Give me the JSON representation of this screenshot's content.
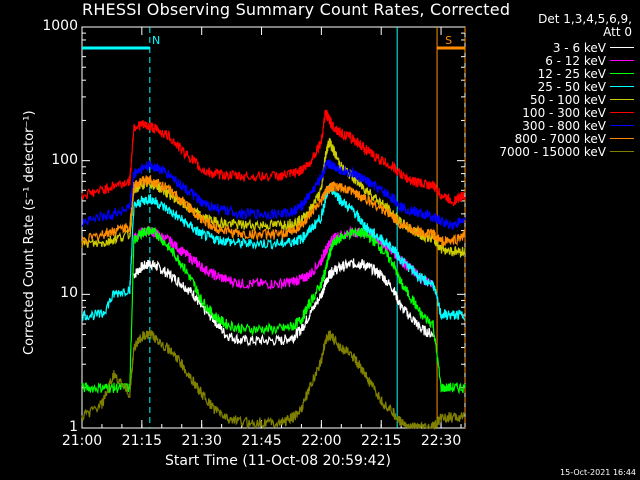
{
  "chart_data": {
    "type": "line",
    "title": "RHESSI Observing Summary Count Rates, Corrected",
    "xlabel": "Start Time (11-Oct-08 20:59:42)",
    "ylabel": "Corrected Count Rate (s⁻¹ detector⁻¹)",
    "yscale": "log",
    "ylim": [
      1,
      1000
    ],
    "xlim_minutes": [
      0,
      96
    ],
    "x_tick_labels": [
      "21:00",
      "21:15",
      "21:30",
      "21:45",
      "22:00",
      "22:15",
      "22:30"
    ],
    "x_tick_minutes": [
      0,
      15,
      30,
      45,
      60,
      75,
      90
    ],
    "y_tick_labels": [
      "1",
      "10",
      "100",
      "1000"
    ],
    "y_tick_values": [
      1,
      10,
      100,
      1000
    ],
    "legend_header": [
      "Det 1,3,4,5,6,9,",
      "Att 0"
    ],
    "timestamp": "15-Oct-2021 16:44",
    "markers": [
      {
        "label": "N",
        "start_min": 0,
        "end_min": 17,
        "dashed_at": 17,
        "color": "#00ffff"
      },
      {
        "label": "S",
        "start_min": 89,
        "end_min": 96,
        "dashed_at": 96,
        "color": "#ff8c00"
      }
    ],
    "x_minutes": [
      0,
      5,
      8,
      12,
      13,
      15,
      17,
      19,
      22,
      25,
      28,
      30,
      33,
      36,
      40,
      45,
      50,
      53,
      55,
      57,
      60,
      61,
      62,
      63,
      65,
      68,
      70,
      72,
      75,
      78,
      80,
      83,
      85,
      88,
      90,
      93,
      96
    ],
    "series": [
      {
        "name": "3 - 6 keV",
        "color": "#ffffff",
        "values": [
          null,
          null,
          null,
          null,
          14,
          16,
          17,
          16,
          14,
          12,
          10,
          8,
          6.5,
          5,
          4.5,
          4.5,
          4.5,
          4.8,
          5.5,
          7,
          10,
          12,
          14,
          15,
          16,
          17,
          17,
          16,
          14,
          11,
          8,
          6.5,
          5.5,
          5,
          null,
          null,
          null
        ]
      },
      {
        "name": "6 - 12 keV",
        "color": "#ff00ff",
        "values": [
          null,
          null,
          null,
          null,
          27,
          29,
          30,
          28,
          25,
          21,
          18,
          16,
          14,
          13,
          12,
          12,
          12,
          12.5,
          13,
          14,
          18,
          21,
          24,
          26,
          28,
          29,
          29,
          28,
          25,
          21,
          18,
          15,
          13,
          12,
          null,
          null,
          null
        ]
      },
      {
        "name": "12 - 25 keV",
        "color": "#00ff00",
        "values": [
          2,
          2,
          2,
          2,
          25,
          29,
          30,
          28,
          22,
          17,
          12,
          9,
          7,
          6,
          5.5,
          5.5,
          5.5,
          5.8,
          6.5,
          8.5,
          12,
          15,
          20,
          24,
          27,
          29,
          29,
          27,
          22,
          17,
          12,
          9,
          7,
          6,
          2,
          2,
          2
        ]
      },
      {
        "name": "25 - 50 keV",
        "color": "#00ffff",
        "values": [
          7,
          7,
          10,
          11,
          45,
          50,
          52,
          48,
          42,
          36,
          31,
          28,
          26,
          25,
          24,
          24,
          24,
          25,
          26,
          30,
          38,
          52,
          62,
          60,
          50,
          42,
          35,
          30,
          26,
          22,
          18,
          15,
          13,
          12,
          7,
          7,
          7
        ]
      },
      {
        "name": "50 - 100 keV",
        "color": "#cccc00",
        "values": [
          24,
          24,
          26,
          28,
          60,
          66,
          68,
          64,
          56,
          48,
          42,
          38,
          35,
          34,
          33,
          33,
          33,
          34,
          36,
          42,
          60,
          110,
          140,
          120,
          90,
          75,
          65,
          58,
          48,
          40,
          34,
          30,
          28,
          26,
          22,
          21,
          21
        ]
      },
      {
        "name": "100 - 300 keV",
        "color": "#ff0000",
        "values": [
          55,
          60,
          65,
          70,
          180,
          185,
          180,
          170,
          150,
          120,
          100,
          85,
          80,
          78,
          76,
          76,
          77,
          80,
          85,
          95,
          140,
          230,
          200,
          180,
          160,
          145,
          130,
          115,
          100,
          90,
          78,
          70,
          68,
          65,
          55,
          50,
          55
        ]
      },
      {
        "name": "300 - 800 keV",
        "color": "#0000ff",
        "values": [
          35,
          38,
          40,
          45,
          80,
          88,
          92,
          88,
          78,
          65,
          55,
          48,
          45,
          42,
          40,
          40,
          40,
          42,
          46,
          55,
          75,
          90,
          95,
          92,
          85,
          80,
          74,
          68,
          60,
          52,
          45,
          42,
          40,
          38,
          35,
          33,
          36
        ]
      },
      {
        "name": "800 - 7000 keV",
        "color": "#ff8c00",
        "values": [
          25,
          28,
          30,
          32,
          65,
          70,
          72,
          68,
          60,
          50,
          42,
          36,
          32,
          30,
          28,
          28,
          28,
          30,
          33,
          38,
          50,
          58,
          62,
          64,
          62,
          58,
          54,
          50,
          44,
          38,
          33,
          30,
          29,
          28,
          25,
          25,
          28
        ]
      },
      {
        "name": "7000 - 15000 keV",
        "color": "#808000",
        "values": [
          1.2,
          1.5,
          2.5,
          1.8,
          4,
          4.8,
          5,
          4.6,
          3.8,
          3,
          2.2,
          1.8,
          1.4,
          1.2,
          1.1,
          1.1,
          1.1,
          1.2,
          1.4,
          2,
          3.2,
          4.5,
          5,
          4.6,
          4,
          3.4,
          2.8,
          2.2,
          1.6,
          1.3,
          1.1,
          1,
          1,
          1,
          1.2,
          1.2,
          1.2
        ]
      }
    ]
  }
}
